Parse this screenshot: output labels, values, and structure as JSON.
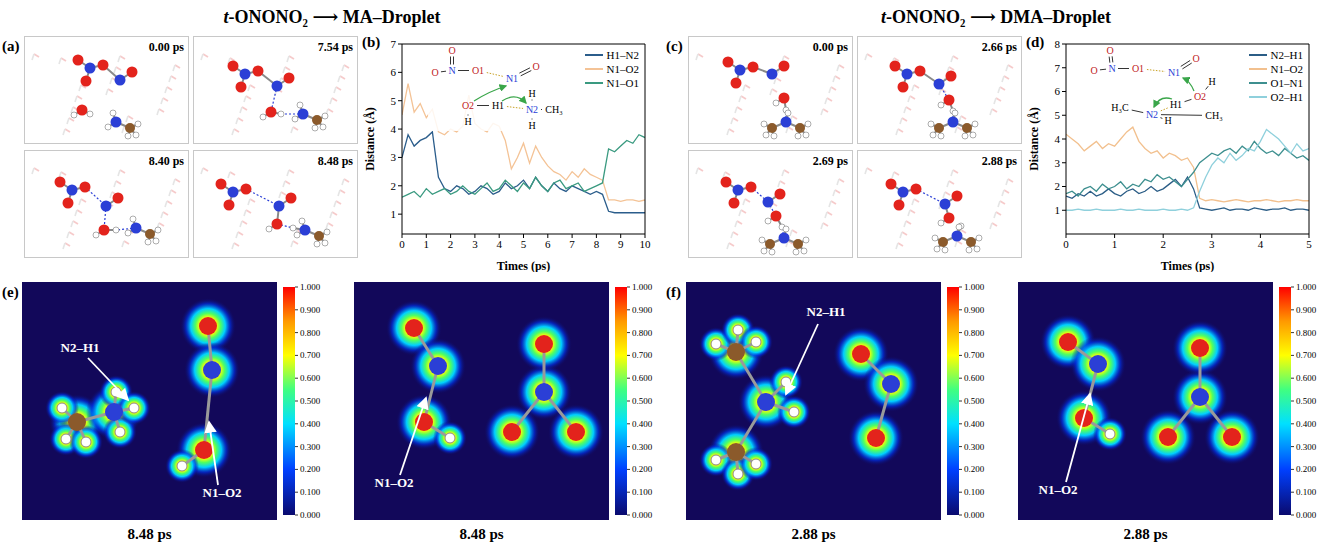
{
  "titles": [
    "t-ONONO₂ ⟶ MA–Droplet",
    "t-ONONO₂ ⟶ DMA–Droplet"
  ],
  "snapshots": [
    {
      "panel": "(a)",
      "times": [
        "0.00 ps",
        "7.54 ps",
        "8.40 ps",
        "8.48 ps"
      ]
    },
    {
      "panel": "(c)",
      "times": [
        "0.00 ps",
        "2.66 ps",
        "2.69 ps",
        "2.88 ps"
      ]
    }
  ],
  "chart_data": [
    {
      "panel": "(b)",
      "type": "line",
      "x_label": "Times (ps)",
      "y_label": "Distance (Å)",
      "x": [
        0,
        0.25,
        0.5,
        0.75,
        1,
        1.25,
        1.5,
        1.75,
        2,
        2.25,
        2.5,
        2.75,
        3,
        3.25,
        3.5,
        3.75,
        4,
        4.25,
        4.5,
        4.75,
        5,
        5.25,
        5.5,
        5.75,
        6,
        6.25,
        6.5,
        6.75,
        7,
        7.25,
        7.5,
        7.75,
        8,
        8.25,
        8.5,
        8.75,
        9,
        9.25,
        9.5,
        9.75,
        10
      ],
      "xlim": [
        0,
        10
      ],
      "xticks": [
        0,
        1,
        2,
        3,
        4,
        5,
        6,
        7,
        8,
        9,
        10
      ],
      "ylim": [
        0.3,
        7
      ],
      "yticks": [
        1,
        2,
        3,
        4,
        5,
        6,
        7
      ],
      "legend": "upper right",
      "series": [
        {
          "name": "H1–N2",
          "color": "#2b5d8b",
          "values": [
            3.0,
            3.8,
            3.4,
            3.6,
            3.7,
            3.9,
            2.3,
            1.9,
            1.8,
            2.0,
            1.9,
            1.7,
            1.8,
            2.0,
            1.9,
            1.7,
            1.8,
            2.1,
            1.9,
            2.0,
            2.2,
            1.9,
            2.3,
            2.0,
            1.8,
            2.1,
            1.9,
            1.8,
            2.0,
            1.9,
            1.8,
            1.7,
            1.8,
            1.7,
            1.1,
            1.05,
            1.05,
            1.05,
            1.05,
            1.05,
            1.05
          ]
        },
        {
          "name": "N1–O2",
          "color": "#f4c396",
          "values": [
            4.5,
            5.6,
            4.6,
            4.9,
            4.4,
            4.7,
            3.9,
            3.8,
            4.0,
            3.9,
            4.1,
            5.2,
            4.2,
            4.0,
            3.9,
            4.2,
            4.1,
            3.6,
            2.6,
            3.0,
            3.5,
            2.8,
            3.4,
            3.0,
            2.7,
            2.5,
            2.4,
            2.2,
            2.5,
            2.3,
            2.6,
            2.4,
            2.3,
            2.2,
            1.5,
            1.5,
            1.45,
            1.5,
            1.5,
            1.45,
            1.5
          ]
        },
        {
          "name": "N1–O1",
          "color": "#3a9a80",
          "values": [
            1.6,
            1.7,
            1.8,
            1.6,
            1.9,
            1.7,
            1.8,
            1.9,
            1.7,
            1.8,
            2.0,
            1.8,
            1.7,
            1.9,
            2.1,
            1.8,
            1.9,
            2.2,
            2.0,
            1.8,
            2.1,
            1.9,
            2.3,
            2.0,
            1.8,
            2.1,
            2.2,
            1.9,
            2.0,
            2.1,
            1.8,
            1.9,
            2.0,
            2.1,
            3.3,
            3.2,
            3.4,
            3.6,
            3.5,
            3.8,
            3.7
          ]
        }
      ],
      "inset": [
        "O",
        "O",
        "N",
        "O1",
        "N1",
        "O",
        "O2",
        "H",
        "H1",
        "N2",
        "H",
        "H",
        "CH₃"
      ]
    },
    {
      "panel": "(d)",
      "type": "line",
      "x_label": "Times (ps)",
      "y_label": "Distance (Å)",
      "x": [
        0,
        0.125,
        0.25,
        0.375,
        0.5,
        0.625,
        0.75,
        0.875,
        1,
        1.125,
        1.25,
        1.375,
        1.5,
        1.625,
        1.75,
        1.875,
        2,
        2.125,
        2.25,
        2.375,
        2.5,
        2.625,
        2.75,
        2.875,
        3,
        3.125,
        3.25,
        3.375,
        3.5,
        3.625,
        3.75,
        3.875,
        4,
        4.125,
        4.25,
        4.375,
        4.5,
        4.625,
        4.75,
        4.875,
        5
      ],
      "xlim": [
        0,
        5
      ],
      "xticks": [
        0,
        1,
        2,
        3,
        4,
        5
      ],
      "ylim": [
        0,
        8
      ],
      "yticks": [
        1,
        2,
        3,
        4,
        5,
        6,
        7,
        8
      ],
      "legend": "upper right",
      "series": [
        {
          "name": "N2–H1",
          "color": "#2b5d86",
          "values": [
            1.6,
            1.5,
            1.7,
            1.6,
            1.8,
            1.6,
            1.7,
            1.9,
            1.7,
            1.6,
            1.8,
            1.9,
            1.7,
            1.8,
            2.0,
            1.8,
            1.9,
            2.1,
            2.3,
            2.0,
            2.4,
            1.9,
            1.1,
            1.05,
            1.0,
            1.05,
            1.1,
            1.0,
            1.05,
            1.05,
            1.0,
            1.1,
            1.05,
            1.0,
            1.05,
            1.05,
            1.1,
            1.0,
            1.05,
            1.05,
            1.0
          ]
        },
        {
          "name": "N1–O2",
          "color": "#f2c08e",
          "values": [
            4.2,
            4.0,
            3.8,
            3.5,
            3.7,
            3.9,
            3.6,
            3.8,
            3.7,
            4.0,
            4.3,
            4.5,
            3.9,
            3.6,
            3.4,
            3.5,
            3.2,
            3.4,
            3.3,
            3.1,
            3.2,
            2.8,
            1.5,
            1.4,
            1.45,
            1.4,
            1.35,
            1.4,
            1.45,
            1.4,
            1.35,
            1.4,
            1.4,
            1.45,
            1.4,
            1.35,
            1.4,
            1.4,
            1.45,
            1.4,
            1.4
          ]
        },
        {
          "name": "O1–N1",
          "color": "#3d8f8f",
          "values": [
            1.7,
            1.8,
            1.6,
            1.9,
            2.0,
            1.8,
            2.1,
            1.9,
            2.0,
            2.2,
            1.9,
            2.1,
            2.0,
            2.3,
            2.2,
            2.5,
            2.3,
            2.4,
            2.2,
            2.0,
            2.3,
            2.6,
            3.0,
            3.2,
            3.4,
            3.3,
            3.5,
            3.6,
            3.4,
            3.7,
            3.5,
            3.9,
            3.6,
            3.4,
            3.5,
            3.3,
            3.6,
            3.4,
            3.2,
            3.3,
            3.1
          ]
        },
        {
          "name": "O2–H1",
          "color": "#8fd0dc",
          "values": [
            1.0,
            1.0,
            1.05,
            1.0,
            1.0,
            1.05,
            1.0,
            1.0,
            1.0,
            1.05,
            1.0,
            1.0,
            1.05,
            1.0,
            1.0,
            1.0,
            1.05,
            1.0,
            1.0,
            1.05,
            1.0,
            1.1,
            1.8,
            2.4,
            2.9,
            3.2,
            3.0,
            3.4,
            3.1,
            3.3,
            3.6,
            3.5,
            3.9,
            4.4,
            4.2,
            4.0,
            3.7,
            3.4,
            3.8,
            3.5,
            3.6
          ]
        }
      ],
      "inset": [
        "O",
        "O",
        "N",
        "O1",
        "N1",
        "O",
        "H",
        "O2",
        "H1",
        "H₃C",
        "N2",
        "H",
        "CH₃"
      ]
    }
  ],
  "elf": [
    {
      "panel": "(e)",
      "maps": [
        {
          "labels": [
            "N2–H1",
            "N1–O2"
          ],
          "time": "8.48 ps"
        },
        {
          "labels": [
            "N1–O2"
          ],
          "time": "8.48 ps"
        }
      ]
    },
    {
      "panel": "(f)",
      "maps": [
        {
          "labels": [
            "N2–H1"
          ],
          "time": "2.88 ps"
        },
        {
          "labels": [
            "N1–O2"
          ],
          "time": "2.88 ps"
        }
      ]
    }
  ],
  "colorbar": {
    "range": [
      0,
      1
    ],
    "ticks": [
      {
        "value": 0,
        "label": "0.000"
      },
      {
        "value": 0.1,
        "label": "0.100"
      },
      {
        "value": 0.2,
        "label": "0.200"
      },
      {
        "value": 0.3,
        "label": "0.300"
      },
      {
        "value": 0.4,
        "label": "0.400"
      },
      {
        "value": 0.5,
        "label": "0.500"
      },
      {
        "value": 0.6,
        "label": "0.600"
      },
      {
        "value": 0.7,
        "label": "0.700"
      },
      {
        "value": 0.8,
        "label": "0.800"
      },
      {
        "value": 0.9,
        "label": "0.900"
      },
      {
        "value": 1,
        "label": "1.000"
      }
    ]
  }
}
